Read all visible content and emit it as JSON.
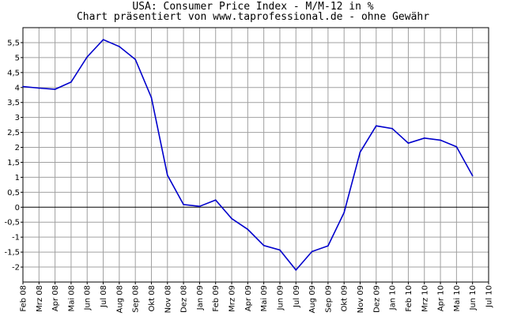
{
  "chart_data": {
    "type": "line",
    "title": "USA: Consumer Price Index - M/M-12 in %",
    "subtitle": "Chart präsentiert von www.taprofessional.de - ohne Gewähr",
    "xlabel": "",
    "ylabel": "",
    "ylim": [
      -2.5,
      6.0
    ],
    "yticks": [
      "5,5",
      "5",
      "4,5",
      "4",
      "3,5",
      "3",
      "2,5",
      "2",
      "1,5",
      "1",
      "0,5",
      "0",
      "-0,5",
      "-1",
      "-1,5",
      "-2"
    ],
    "ytick_values": [
      5.5,
      5,
      4.5,
      4,
      3.5,
      3,
      2.5,
      2,
      1.5,
      1,
      0.5,
      0,
      -0.5,
      -1,
      -1.5,
      -2
    ],
    "categories": [
      "Feb 08",
      "Mrz 08",
      "Apr 08",
      "Mai 08",
      "Jun 08",
      "Jul 08",
      "Aug 08",
      "Sep 08",
      "Okt 08",
      "Nov 08",
      "Dez 08",
      "Jan 09",
      "Feb 09",
      "Mrz 09",
      "Apr 09",
      "Mai 09",
      "Jun 09",
      "Jul 09",
      "Aug 09",
      "Sep 09",
      "Okt 09",
      "Nov 09",
      "Dez 09",
      "Jan 10",
      "Feb 10",
      "Mrz 10",
      "Apr 10",
      "Mai 10",
      "Jun 10",
      "Jul 10"
    ],
    "grid": true,
    "zero_line": true,
    "series": [
      {
        "color": "#0000cc",
        "values": [
          4.03,
          3.98,
          3.94,
          4.18,
          5.02,
          5.6,
          5.37,
          4.94,
          3.66,
          1.07,
          0.09,
          0.03,
          0.24,
          -0.38,
          -0.74,
          -1.28,
          -1.43,
          -2.1,
          -1.48,
          -1.29,
          -0.18,
          1.84,
          2.72,
          2.63,
          2.14,
          2.31,
          2.24,
          2.02,
          1.05,
          null
        ]
      }
    ]
  }
}
